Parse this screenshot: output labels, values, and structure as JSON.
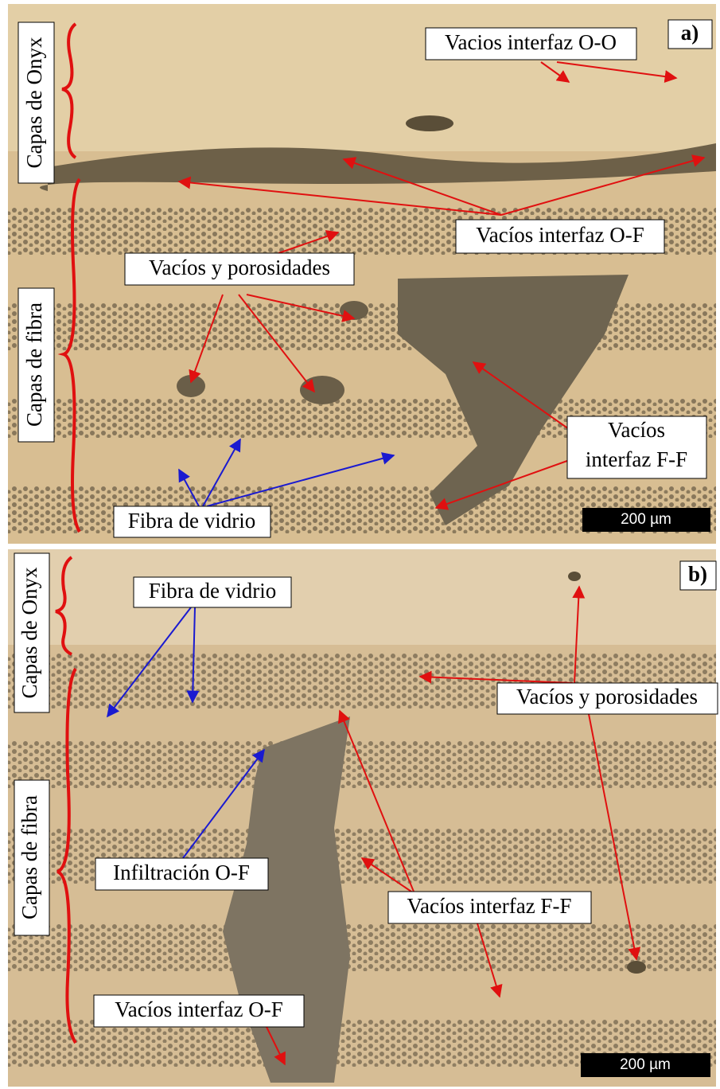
{
  "panels": [
    {
      "tag": "a)",
      "scale_bar": "200 µm",
      "side_labels": [
        "Capas de Onyx",
        "Capas de fibra"
      ],
      "annotations": [
        [
          "Vacios interfaz O-O"
        ],
        [
          "Vacíos interfaz O-F"
        ],
        [
          "Vacíos y porosidades"
        ],
        [
          "Vacíos",
          "interfaz F-F"
        ],
        [
          "Fibra de vidrio"
        ]
      ]
    },
    {
      "tag": "b)",
      "scale_bar": "200 µm",
      "side_labels": [
        "Capas de Onyx",
        "Capas de fibra"
      ],
      "annotations": [
        [
          "Fibra de vidrio"
        ],
        [
          "Vacíos y porosidades"
        ],
        [
          "Infiltración O-F"
        ],
        [
          "Vacíos interfaz F-F"
        ],
        [
          "Vacíos interfaz O-F"
        ]
      ]
    }
  ]
}
